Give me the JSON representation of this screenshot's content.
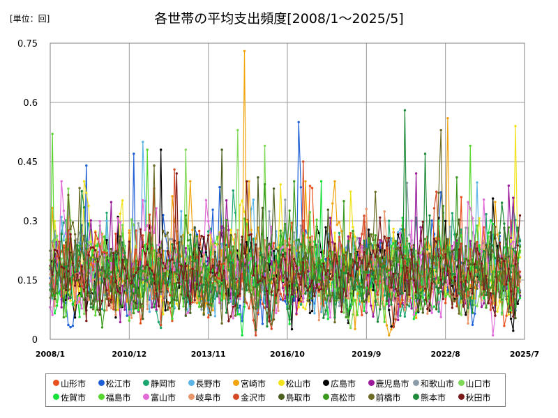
{
  "chart_data": {
    "type": "line",
    "title": "各世帯の平均支出頻度[2008/1～2025/5]",
    "unit_label": "[単位：回]",
    "xlabel": "",
    "ylabel": "",
    "ylim": [
      0,
      0.75
    ],
    "xlim": [
      "2008/1",
      "2025/7"
    ],
    "y_ticks": [
      {
        "value": 0,
        "label": "0"
      },
      {
        "value": 0.15,
        "label": "0.15"
      },
      {
        "value": 0.3,
        "label": "0.3"
      },
      {
        "value": 0.45,
        "label": "0.45"
      },
      {
        "value": 0.6,
        "label": "0.6"
      },
      {
        "value": 0.75,
        "label": "0.75"
      }
    ],
    "x_ticks": [
      "2008/1",
      "2010/12",
      "2013/11",
      "2016/10",
      "2019/9",
      "2022/8",
      "2025/7"
    ],
    "grid": true,
    "legend_position": "bottom",
    "x_start": "2008/1",
    "x_end": "2025/5",
    "series": [
      {
        "name": "山形市",
        "color": "#e8501e",
        "seed": 11,
        "peaks": [
          [
            182,
            0.36
          ],
          [
            112,
            0.3
          ]
        ]
      },
      {
        "name": "松江市",
        "color": "#1f5fd6",
        "seed": 23,
        "peaks": [
          [
            37,
            0.47
          ],
          [
            111,
            0.58
          ],
          [
            110,
            0.55
          ],
          [
            16,
            0.44
          ]
        ]
      },
      {
        "name": "静岡市",
        "color": "#1aa66e",
        "seed": 37,
        "peaks": [
          [
            150,
            0.3
          ]
        ]
      },
      {
        "name": "長野市",
        "color": "#5ab4e6",
        "seed": 41,
        "peaks": [
          [
            42,
            0.62
          ],
          [
            41,
            0.5
          ],
          [
            25,
            0.3
          ]
        ]
      },
      {
        "name": "宮崎市",
        "color": "#f0a30a",
        "seed": 53,
        "peaks": [
          [
            86,
            0.73
          ],
          [
            176,
            0.56
          ],
          [
            88,
            0.4
          ]
        ]
      },
      {
        "name": "松山市",
        "color": "#f2e21a",
        "seed": 59,
        "peaks": [
          [
            206,
            0.54
          ],
          [
            204,
            0.3
          ]
        ]
      },
      {
        "name": "広島市",
        "color": "#000000",
        "seed": 61,
        "peaks": [
          [
            49,
            0.48
          ],
          [
            30,
            0.31
          ]
        ]
      },
      {
        "name": "鹿児島市",
        "color": "#9a1a9a",
        "seed": 71,
        "peaks": [
          [
            162,
            0.42
          ]
        ]
      },
      {
        "name": "和歌山市",
        "color": "#8c9ba8",
        "seed": 79,
        "peaks": [
          [
            140,
            0.28
          ]
        ]
      },
      {
        "name": "山口市",
        "color": "#7ed957",
        "seed": 83,
        "peaks": [
          [
            83,
            0.53
          ],
          [
            95,
            0.49
          ],
          [
            60,
            0.48
          ]
        ]
      },
      {
        "name": "佐賀市",
        "color": "#18e03a",
        "seed": 89,
        "peaks": [
          [
            120,
            0.4
          ]
        ]
      },
      {
        "name": "福島市",
        "color": "#56d62e",
        "seed": 97,
        "peaks": [
          [
            1,
            0.52
          ],
          [
            43,
            0.48
          ],
          [
            186,
            0.49
          ]
        ]
      },
      {
        "name": "富山市",
        "color": "#e36bd8",
        "seed": 101,
        "peaks": [
          [
            160,
            0.3
          ]
        ]
      },
      {
        "name": "岐阜市",
        "color": "#e8966a",
        "seed": 103,
        "peaks": [
          [
            140,
            0.33
          ]
        ]
      },
      {
        "name": "金沢市",
        "color": "#d44a26",
        "seed": 107,
        "peaks": [
          [
            112,
            0.45
          ],
          [
            55,
            0.43
          ]
        ]
      },
      {
        "name": "鳥取市",
        "color": "#4a5e1e",
        "seed": 109,
        "peaks": [
          [
            76,
            0.48
          ],
          [
            92,
            0.41
          ]
        ]
      },
      {
        "name": "高松市",
        "color": "#3b9a1e",
        "seed": 113,
        "peaks": [
          [
            180,
            0.41
          ],
          [
            130,
            0.35
          ]
        ]
      },
      {
        "name": "前橋市",
        "color": "#6b6b26",
        "seed": 127,
        "peaks": [
          [
            172,
            0.6
          ],
          [
            173,
            0.53
          ],
          [
            46,
            0.44
          ]
        ]
      },
      {
        "name": "熊本市",
        "color": "#1f8a3a",
        "seed": 131,
        "peaks": [
          [
            157,
            0.58
          ],
          [
            166,
            0.47
          ]
        ]
      },
      {
        "name": "秋田市",
        "color": "#7a1a1a",
        "seed": 137,
        "peaks": [
          [
            56,
            0.42
          ]
        ]
      }
    ]
  }
}
